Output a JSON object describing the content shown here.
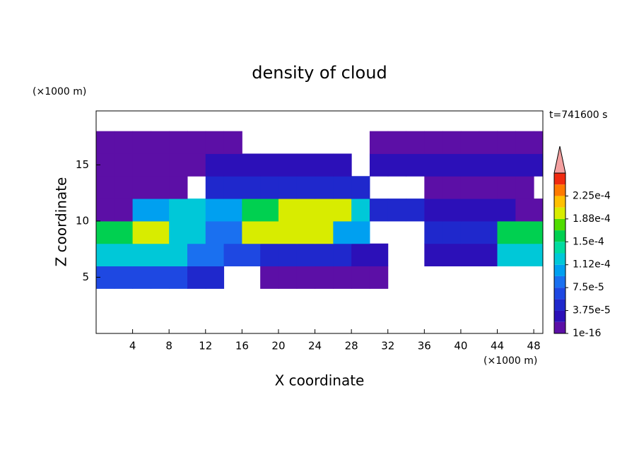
{
  "chart_data": {
    "type": "contour",
    "title": "density of cloud",
    "x_label": "X coordinate",
    "y_label": "Z coordinate",
    "x_unit": "(×1000 m)",
    "y_unit": "(×1000 m)",
    "annotation": "t=741600 s",
    "xlim": [
      0,
      49
    ],
    "ylim": [
      0,
      19.8
    ],
    "xticks": [
      4,
      8,
      12,
      16,
      20,
      24,
      28,
      32,
      36,
      40,
      44,
      48
    ],
    "yticks": [
      5,
      10,
      15
    ],
    "cell_size": 2,
    "x": [
      1,
      3,
      5,
      7,
      9,
      11,
      13,
      15,
      17,
      19,
      21,
      23,
      25,
      27,
      29,
      31,
      33,
      35,
      37,
      39,
      41,
      43,
      45,
      47,
      49
    ],
    "z": [
      1,
      3,
      5,
      7,
      9,
      11,
      13,
      15,
      17,
      19
    ],
    "values": [
      [
        null,
        null,
        null,
        null,
        null,
        null,
        null,
        null,
        null,
        null,
        null,
        null,
        null,
        null,
        null,
        null,
        null,
        null,
        null,
        null,
        null,
        null,
        null,
        null,
        null
      ],
      [
        null,
        null,
        null,
        null,
        null,
        null,
        null,
        null,
        null,
        null,
        null,
        null,
        null,
        null,
        null,
        null,
        null,
        null,
        null,
        null,
        null,
        null,
        null,
        null,
        null
      ],
      [
        6e-05,
        6e-05,
        6e-05,
        6e-05,
        6e-05,
        5e-05,
        5e-05,
        null,
        null,
        1e-05,
        1e-05,
        1e-05,
        1e-05,
        1e-05,
        1e-05,
        1e-05,
        null,
        null,
        null,
        null,
        null,
        null,
        null,
        null,
        null
      ],
      [
        0.00013,
        0.00013,
        0.00013,
        0.00013,
        0.00012,
        9e-05,
        9e-05,
        6e-05,
        6e-05,
        5e-05,
        5e-05,
        5e-05,
        5e-05,
        5e-05,
        3e-05,
        3e-05,
        null,
        null,
        3e-05,
        3e-05,
        3e-05,
        3e-05,
        0.00012,
        0.00012,
        0.00012
      ],
      [
        0.00015,
        0.00015,
        0.0002,
        0.0002,
        0.00012,
        0.00012,
        8e-05,
        8e-05,
        0.00019,
        0.00019,
        0.00019,
        0.00019,
        0.00019,
        0.0001,
        0.0001,
        null,
        null,
        null,
        4e-05,
        4e-05,
        4e-05,
        4e-05,
        0.00015,
        0.00015,
        0.00015
      ],
      [
        1e-05,
        1e-05,
        0.0001,
        0.0001,
        0.00012,
        0.00012,
        0.0001,
        0.0001,
        0.00015,
        0.00015,
        0.0002,
        0.0002,
        0.0002,
        0.0002,
        0.00013,
        5e-05,
        5e-05,
        5e-05,
        2e-05,
        2e-05,
        2e-05,
        2e-05,
        2e-05,
        1e-05,
        1e-05
      ],
      [
        1e-05,
        1e-05,
        1e-05,
        1e-05,
        1e-05,
        null,
        4e-05,
        4e-05,
        4e-05,
        5e-05,
        5e-05,
        5e-05,
        5e-05,
        5e-05,
        5e-05,
        null,
        null,
        null,
        1e-05,
        1e-05,
        1e-05,
        1e-05,
        1e-05,
        1e-05,
        null
      ],
      [
        1e-05,
        1e-05,
        1e-05,
        1e-05,
        1e-05,
        1e-05,
        3e-05,
        3e-05,
        3e-05,
        3e-05,
        3e-05,
        3e-05,
        3e-05,
        3e-05,
        null,
        2e-05,
        2e-05,
        2e-05,
        2e-05,
        2e-05,
        2e-05,
        2e-05,
        2e-05,
        2e-05,
        2e-05
      ],
      [
        1e-05,
        1e-05,
        1e-05,
        1e-05,
        1e-05,
        1e-05,
        1e-05,
        1e-05,
        null,
        null,
        null,
        null,
        null,
        null,
        null,
        1e-05,
        1e-05,
        1e-05,
        1e-05,
        1e-05,
        1e-05,
        1e-05,
        1e-05,
        1e-05,
        1e-05
      ],
      [
        null,
        null,
        null,
        null,
        null,
        null,
        null,
        null,
        null,
        null,
        null,
        null,
        null,
        null,
        null,
        null,
        null,
        null,
        null,
        null,
        null,
        null,
        null,
        null,
        null
      ]
    ],
    "colorbar": {
      "clim": [
        1e-16,
        0.0002625
      ],
      "levels": [
        1e-16,
        1.875e-05,
        3.75e-05,
        5.625e-05,
        7.5e-05,
        9.375e-05,
        0.0001125,
        0.00013125,
        0.00015,
        0.00016875,
        0.0001875,
        0.00020625,
        0.000225,
        0.00024375
      ],
      "colors": [
        "#5c0fa6",
        "#2c10b8",
        "#1f28cc",
        "#1e48e2",
        "#1a70f0",
        "#00a0f0",
        "#00c8d8",
        "#00dca0",
        "#00d050",
        "#50dc00",
        "#d8ec00",
        "#ffc000",
        "#ff7a00",
        "#f02a10"
      ],
      "extend_color": "#f4a0a0",
      "ticks": [
        {
          "value": 1e-16,
          "label": "1e-16"
        },
        {
          "value": 3.75e-05,
          "label": "3.75e-5"
        },
        {
          "value": 7.5e-05,
          "label": "7.5e-5"
        },
        {
          "value": 0.0001125,
          "label": "1.12e-4"
        },
        {
          "value": 0.00015,
          "label": "1.5e-4"
        },
        {
          "value": 0.0001875,
          "label": "1.88e-4"
        },
        {
          "value": 0.000225,
          "label": "2.25e-4"
        }
      ]
    }
  }
}
